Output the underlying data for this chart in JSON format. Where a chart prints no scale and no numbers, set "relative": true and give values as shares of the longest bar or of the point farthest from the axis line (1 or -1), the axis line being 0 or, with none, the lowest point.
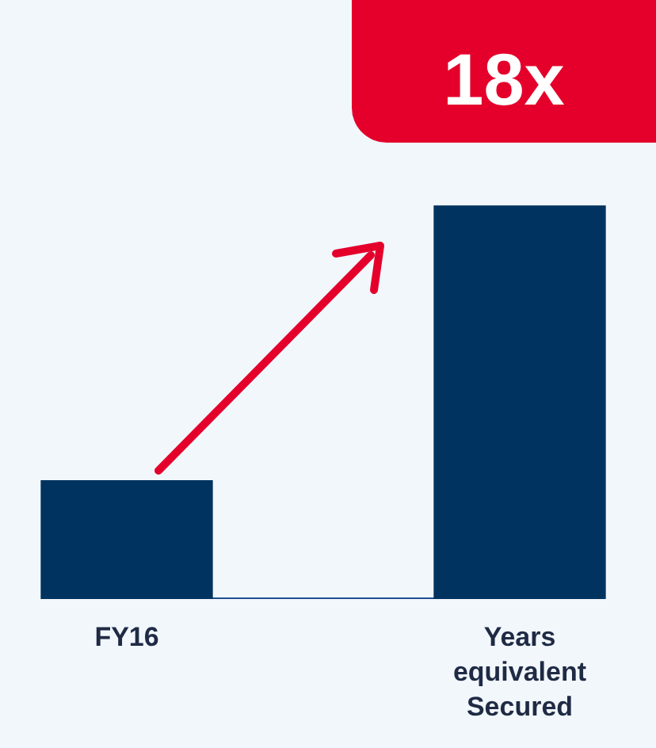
{
  "chart_data": {
    "type": "bar",
    "relative": true,
    "categories": [
      "FY16",
      "Years equivalent Secured"
    ],
    "values": [
      0.3,
      1
    ],
    "color": "#00335f",
    "legend": false,
    "grid": false,
    "annotations": [
      "18x"
    ]
  }
}
